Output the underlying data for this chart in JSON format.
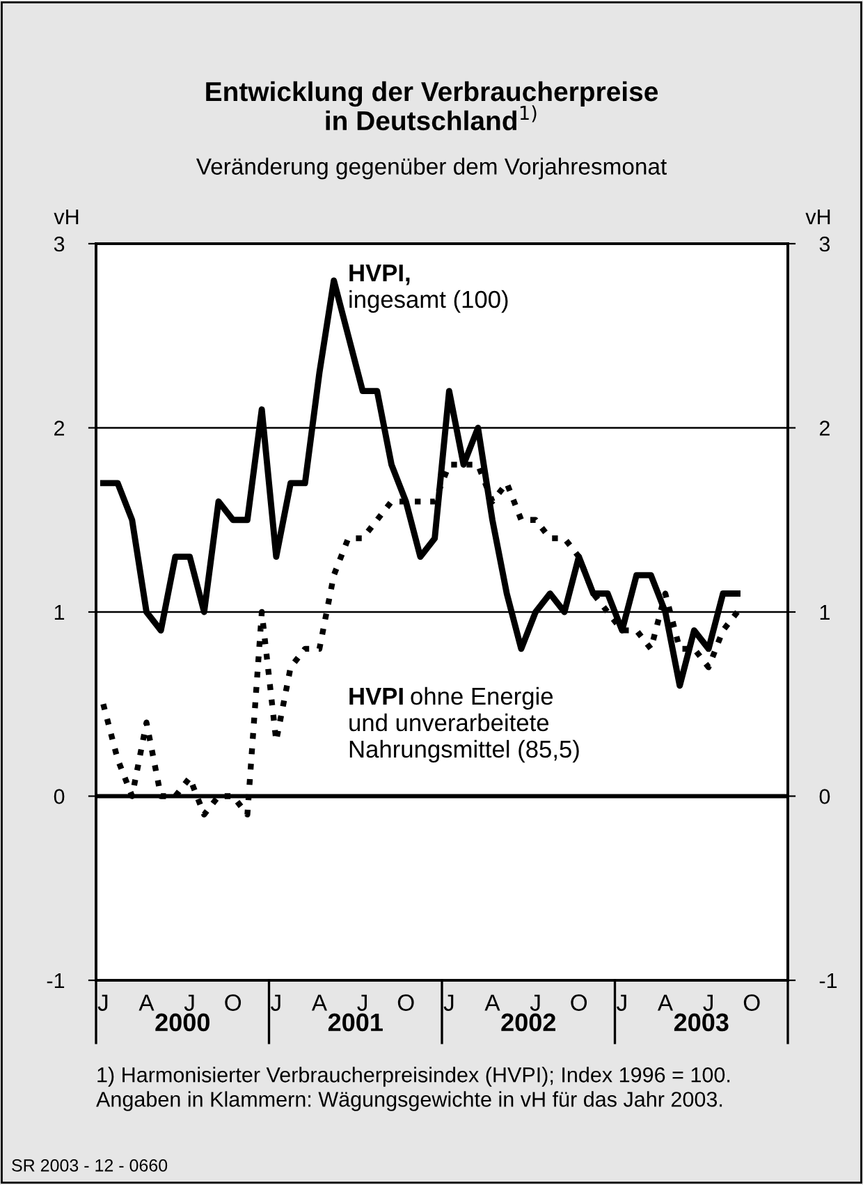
{
  "chart_data": {
    "type": "line",
    "title": "Entwicklung der Verbraucherpreise\nin Deutschland$^{1)}$",
    "subtitle": "Veränderung gegenüber dem Vorjahresmonat",
    "ylabel": "vH",
    "y2label": "vH",
    "categories": [
      "J",
      null,
      null,
      "A",
      null,
      null,
      "J",
      null,
      null,
      "O",
      null,
      null,
      "J",
      null,
      null,
      "A",
      null,
      null,
      "J",
      null,
      null,
      "O",
      null,
      null,
      "J",
      null,
      null,
      "A",
      null,
      null,
      "J",
      null,
      null,
      "O",
      null,
      null,
      "J",
      null,
      null,
      "A",
      null,
      null,
      "J",
      null,
      null,
      "O",
      null,
      null
    ],
    "series": [
      {
        "name": "HVPI,\ningesamt (100)",
        "color": "#000000",
        "line_style": "solid",
        "values": [
          1.7,
          1.7,
          1.5,
          1.0,
          0.9,
          1.3,
          1.3,
          1.0,
          1.6,
          1.5,
          1.5,
          2.1,
          1.3,
          1.7,
          1.7,
          2.3,
          2.8,
          2.5,
          2.2,
          2.2,
          1.8,
          1.6,
          1.3,
          1.4,
          2.2,
          1.8,
          2.0,
          1.5,
          1.1,
          0.8,
          1.0,
          1.1,
          1.0,
          1.3,
          1.1,
          1.1,
          0.9,
          1.2,
          1.2,
          1.0,
          0.6,
          0.9,
          0.8,
          1.1,
          1.1,
          null,
          null,
          null
        ]
      },
      {
        "name": "HVPI ohne Energie\nund unverarbeitete\nNahrungsmittel (85,5)",
        "color": "#000000",
        "line_style": "dotted",
        "values": [
          0.5,
          0.2,
          0.0,
          0.4,
          0.0,
          0.0,
          0.1,
          -0.1,
          0.0,
          0.0,
          -0.1,
          1.0,
          0.3,
          0.7,
          0.8,
          0.8,
          1.2,
          1.4,
          1.4,
          1.5,
          1.6,
          1.6,
          1.6,
          1.6,
          1.8,
          1.8,
          1.8,
          1.6,
          1.7,
          1.5,
          1.5,
          1.4,
          1.4,
          1.3,
          1.1,
          1.0,
          0.9,
          0.9,
          0.8,
          1.1,
          0.8,
          0.8,
          0.7,
          0.9,
          1.0,
          null,
          null,
          null
        ]
      }
    ],
    "ylim": [
      -1,
      3
    ],
    "yticks": [
      -1,
      0,
      1,
      2,
      3
    ],
    "y2lim": [
      -1,
      3
    ],
    "y2ticks": [
      -1,
      0,
      1,
      2,
      3
    ],
    "grid": "y",
    "ref_lines": [
      {
        "axis": "y",
        "value": 0,
        "label": null
      }
    ],
    "legend": false,
    "annotations": [
      "2000",
      "2001",
      "2002",
      "2003",
      "1) Harmonisierter Verbraucherpreisindex (HVPI); Index 1996 = 100.\nAngaben in Klammern: Wägungsgewichte in vH für das Jahr 2003.",
      "SR 2003 - 12 - 0660"
    ]
  }
}
